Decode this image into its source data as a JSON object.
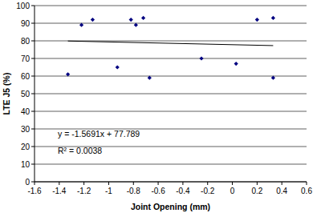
{
  "chart_data": {
    "type": "scatter",
    "x_label": "Joint Opening (mm)",
    "y_label": "LTE J5 (%)",
    "annotations": [
      "y = -1.5691x + 77.789",
      "R² = 0.0038"
    ],
    "series": [
      {
        "type": "scatter",
        "marker": "diamond",
        "color": "#000080",
        "x": [
          -1.33,
          -1.22,
          -1.13,
          -0.93,
          -0.82,
          -0.78,
          -0.72,
          -0.67,
          -0.25,
          0.03,
          0.2,
          0.33,
          0.33
        ],
        "values": [
          61,
          89,
          92,
          65,
          92,
          89,
          93,
          59,
          70,
          67,
          92,
          93,
          59
        ]
      },
      {
        "type": "line",
        "line_style": "solid",
        "color": "#000000",
        "x": [
          -1.33,
          0.33
        ],
        "values": [
          79.9,
          77.3
        ]
      }
    ],
    "xlim": [
      -1.6,
      0.6
    ],
    "xticks": [
      -1.6,
      -1.4,
      -1.2,
      -1,
      -0.8,
      -0.6,
      -0.4,
      -0.2,
      0,
      0.2,
      0.4,
      0.6
    ],
    "ylim": [
      0,
      100
    ],
    "yticks": [
      0,
      10,
      20,
      30,
      40,
      50,
      60,
      70,
      80,
      90,
      100
    ],
    "grid": true
  }
}
